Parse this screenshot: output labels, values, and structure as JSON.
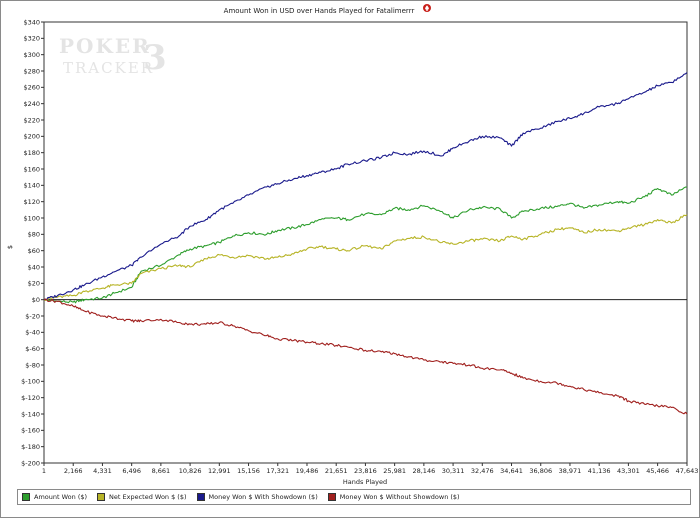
{
  "chart_data": {
    "type": "line",
    "title": "Amount Won in USD over Hands Played for Fatalimerrr",
    "xlabel": "Hands Played",
    "ylabel": "$",
    "xlim": [
      1,
      47643
    ],
    "ylim": [
      -200,
      340
    ],
    "x_ticks": [
      "1",
      "2,166",
      "4,331",
      "6,496",
      "8,661",
      "10,826",
      "12,991",
      "15,156",
      "17,321",
      "19,486",
      "21,651",
      "23,816",
      "25,981",
      "28,146",
      "30,311",
      "32,476",
      "34,641",
      "36,806",
      "38,971",
      "41,136",
      "43,301",
      "45,466",
      "47,643"
    ],
    "y_ticks": [
      "$340",
      "$320",
      "$300",
      "$280",
      "$260",
      "$240",
      "$220",
      "$200",
      "$180",
      "$160",
      "$140",
      "$120",
      "$100",
      "$80",
      "$60",
      "$40",
      "$20",
      "$0",
      "$-20",
      "$-40",
      "$-60",
      "$-80",
      "$-100",
      "$-120",
      "$-140",
      "$-160",
      "$-180",
      "$-200"
    ],
    "grid": false,
    "legend_position": "bottom",
    "watermark": "POKER TRACKER 3",
    "series": [
      {
        "name": "Amount Won ($)",
        "color": "#2e9e2e",
        "x": [
          1,
          1000,
          2166,
          3000,
          4331,
          5200,
          6496,
          7200,
          8661,
          10000,
          10826,
          12000,
          12991,
          14000,
          15156,
          16500,
          17321,
          18500,
          19486,
          20500,
          21651,
          22500,
          23816,
          25000,
          25981,
          27000,
          28146,
          29500,
          30311,
          31500,
          32476,
          33800,
          34641,
          35500,
          36806,
          38000,
          38971,
          40000,
          41136,
          42500,
          43301,
          44500,
          45466,
          46500,
          47643
        ],
        "values": [
          0,
          -2,
          -3,
          0,
          2,
          8,
          15,
          35,
          42,
          55,
          62,
          66,
          70,
          78,
          82,
          80,
          85,
          88,
          92,
          98,
          100,
          98,
          105,
          104,
          112,
          110,
          115,
          108,
          100,
          110,
          113,
          111,
          100,
          108,
          112,
          114,
          118,
          112,
          116,
          120,
          118,
          126,
          136,
          128,
          138
        ]
      },
      {
        "name": "Net Expected Won $ ($)",
        "color": "#b7b427",
        "x": [
          1,
          1000,
          2166,
          3000,
          4331,
          5200,
          6496,
          7200,
          8661,
          10000,
          10826,
          12000,
          12991,
          14000,
          15156,
          16500,
          17321,
          18500,
          19486,
          20500,
          21651,
          22500,
          23816,
          25000,
          25981,
          27000,
          28146,
          29500,
          30311,
          31500,
          32476,
          33800,
          34641,
          35500,
          36806,
          38000,
          38971,
          40000,
          41136,
          42500,
          43301,
          44500,
          45466,
          46500,
          47643
        ],
        "values": [
          0,
          3,
          5,
          10,
          14,
          18,
          20,
          32,
          38,
          42,
          40,
          50,
          55,
          52,
          54,
          50,
          52,
          56,
          62,
          65,
          62,
          60,
          66,
          62,
          72,
          75,
          77,
          70,
          68,
          72,
          74,
          72,
          78,
          74,
          80,
          86,
          88,
          82,
          86,
          84,
          88,
          92,
          98,
          94,
          104
        ]
      },
      {
        "name": "Money Won $ With Showdown ($)",
        "color": "#1a1a8c",
        "x": [
          1,
          1000,
          2166,
          3000,
          4331,
          5200,
          6496,
          7200,
          8661,
          10000,
          10826,
          12000,
          12991,
          14000,
          15156,
          16500,
          17321,
          18500,
          19486,
          20500,
          21651,
          22500,
          23816,
          25000,
          25981,
          27000,
          28146,
          29500,
          30311,
          31500,
          32476,
          33800,
          34641,
          35500,
          36806,
          38000,
          38971,
          40000,
          41136,
          42500,
          43301,
          44500,
          45466,
          46500,
          47643
        ],
        "values": [
          0,
          5,
          12,
          18,
          28,
          34,
          42,
          52,
          68,
          78,
          90,
          98,
          110,
          118,
          128,
          138,
          142,
          148,
          152,
          156,
          160,
          166,
          170,
          174,
          180,
          178,
          182,
          176,
          186,
          194,
          200,
          198,
          188,
          204,
          210,
          218,
          222,
          228,
          236,
          240,
          246,
          254,
          262,
          266,
          278
        ]
      },
      {
        "name": "Money Won $ Without Showdown ($)",
        "color": "#a0201e",
        "x": [
          1,
          1000,
          2166,
          3000,
          4331,
          5200,
          6496,
          7200,
          8661,
          10000,
          10826,
          12000,
          12991,
          14000,
          15156,
          16500,
          17321,
          18500,
          19486,
          20500,
          21651,
          22500,
          23816,
          25000,
          25981,
          27000,
          28146,
          29500,
          30311,
          31500,
          32476,
          33800,
          34641,
          35500,
          36806,
          38000,
          38971,
          40000,
          41136,
          42500,
          43301,
          44500,
          45466,
          46500,
          47643
        ],
        "values": [
          0,
          -2,
          -8,
          -14,
          -20,
          -22,
          -26,
          -26,
          -24,
          -28,
          -30,
          -30,
          -28,
          -32,
          -38,
          -44,
          -48,
          -50,
          -52,
          -54,
          -56,
          -58,
          -62,
          -64,
          -66,
          -70,
          -74,
          -76,
          -78,
          -80,
          -84,
          -86,
          -90,
          -96,
          -100,
          -102,
          -106,
          -110,
          -114,
          -118,
          -124,
          -128,
          -130,
          -132,
          -140
        ]
      }
    ]
  }
}
